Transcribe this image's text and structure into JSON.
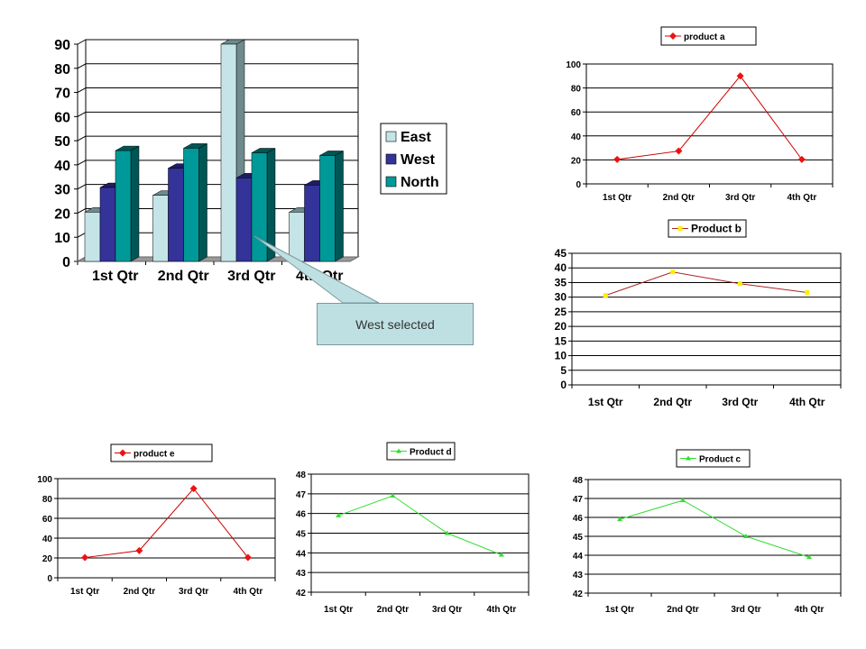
{
  "chart_data": [
    {
      "type": "bar",
      "style": "3d-clustered-column",
      "categories": [
        "1st Qtr",
        "2nd Qtr",
        "3rd Qtr",
        "4th Qtr"
      ],
      "series": [
        {
          "name": "East",
          "values": [
            20.4,
            27.4,
            90,
            20.4
          ],
          "color": "#c4e4e8"
        },
        {
          "name": "West",
          "values": [
            30.6,
            38.6,
            34.6,
            31.6
          ],
          "color": "#333399"
        },
        {
          "name": "North",
          "values": [
            45.9,
            46.9,
            45,
            43.9
          ],
          "color": "#009999"
        }
      ],
      "yticks": [
        "0",
        "10",
        "20",
        "30",
        "40",
        "50",
        "60",
        "70",
        "80",
        "90"
      ],
      "ylim": [
        0,
        90
      ],
      "grid": true,
      "legend": "right",
      "annotation": "West selected"
    },
    {
      "type": "line",
      "categories": [
        "1st Qtr",
        "2nd Qtr",
        "3rd Qtr",
        "4th Qtr"
      ],
      "series": [
        {
          "name": "product a",
          "values": [
            20.4,
            27.4,
            90,
            20.4
          ],
          "color": "#cc0000",
          "marker_color": "#ee1111",
          "marker": "diamond"
        }
      ],
      "yticks": [
        "0",
        "20",
        "40",
        "60",
        "80",
        "100"
      ],
      "ylim": [
        0,
        100
      ],
      "grid": true,
      "legend": "top"
    },
    {
      "type": "line",
      "categories": [
        "1st Qtr",
        "2nd Qtr",
        "3rd Qtr",
        "4th Qtr"
      ],
      "series": [
        {
          "name": "Product b",
          "values": [
            30.6,
            38.6,
            34.6,
            31.6
          ],
          "color": "#aa2222",
          "marker_color": "#ffee00",
          "marker": "square"
        }
      ],
      "yticks": [
        "0",
        "5",
        "10",
        "15",
        "20",
        "25",
        "30",
        "35",
        "40",
        "45"
      ],
      "ylim": [
        0,
        45
      ],
      "grid": true,
      "legend": "top"
    },
    {
      "type": "line",
      "categories": [
        "1st Qtr",
        "2nd Qtr",
        "3rd Qtr",
        "4th Qtr"
      ],
      "series": [
        {
          "name": "product e",
          "values": [
            20.4,
            27.4,
            90,
            20.4
          ],
          "color": "#cc0000",
          "marker_color": "#ee1111",
          "marker": "diamond"
        }
      ],
      "yticks": [
        "0",
        "20",
        "40",
        "60",
        "80",
        "100"
      ],
      "ylim": [
        0,
        100
      ],
      "grid": true,
      "legend": "top"
    },
    {
      "type": "line",
      "categories": [
        "1st Qtr",
        "2nd Qtr",
        "3rd Qtr",
        "4th Qtr"
      ],
      "series": [
        {
          "name": "Product d",
          "values": [
            45.9,
            46.9,
            45,
            43.9
          ],
          "color": "#33dd33",
          "marker_color": "#33dd33",
          "marker": "triangle"
        }
      ],
      "yticks": [
        "42",
        "43",
        "44",
        "45",
        "46",
        "47",
        "48"
      ],
      "ylim": [
        42,
        48
      ],
      "grid": true,
      "legend": "top"
    },
    {
      "type": "line",
      "categories": [
        "1st Qtr",
        "2nd Qtr",
        "3rd Qtr",
        "4th Qtr"
      ],
      "series": [
        {
          "name": "Product c",
          "values": [
            45.9,
            46.9,
            45,
            43.9
          ],
          "color": "#33dd33",
          "marker_color": "#33dd33",
          "marker": "triangle"
        }
      ],
      "yticks": [
        "42",
        "43",
        "44",
        "45",
        "46",
        "47",
        "48"
      ],
      "ylim": [
        42,
        48
      ],
      "grid": true,
      "legend": "top"
    }
  ]
}
